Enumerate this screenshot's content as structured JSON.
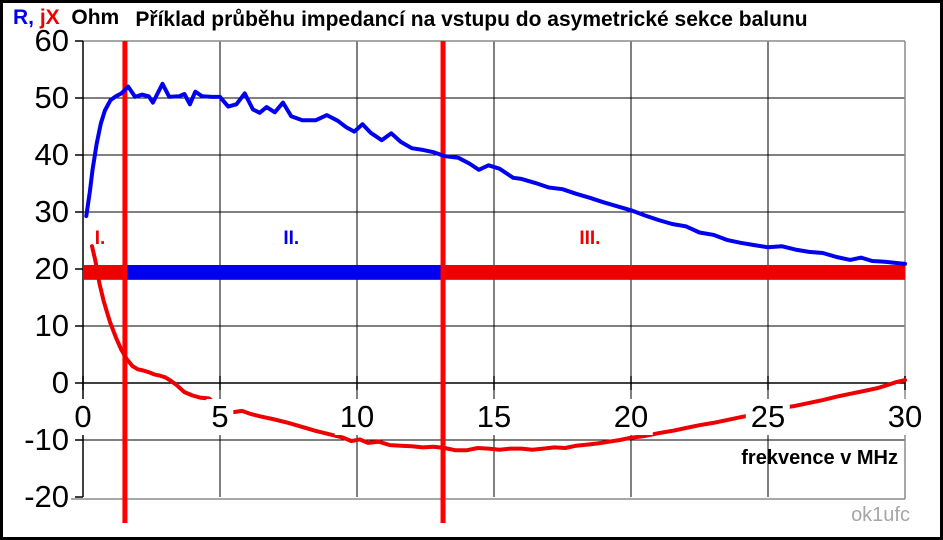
{
  "title": "Příklad průběhu impedancí na vstupu do asymetrické sekce balunu",
  "legend": {
    "r": "R,",
    "jx": " jX",
    "unit": "  Ohm"
  },
  "footer": {
    "x_axis_label": "frekvence v MHz",
    "watermark": "ok1ufc"
  },
  "colors": {
    "r_series": "#0000EE",
    "jx_series": "#EE0000",
    "marker_line": "#FF0000",
    "grid": "#000000",
    "plot_border": "#8C8C8C",
    "watermark": "#A6A6A6"
  },
  "chart_data": {
    "type": "line",
    "title": "Příklad průběhu impedancí na vstupu do asymetrické sekce balunu",
    "xlabel": "frekvence v MHz",
    "ylabel": "R, jX  Ohm",
    "xlim": [
      0,
      30
    ],
    "ylim": [
      -20,
      60
    ],
    "x_ticks": [
      0,
      5,
      10,
      15,
      20,
      25,
      30
    ],
    "y_ticks": [
      60,
      50,
      40,
      30,
      20,
      10,
      0,
      -10,
      -20
    ],
    "grid": "on",
    "legend_position": "top-left",
    "vlines": {
      "x": [
        1.53,
        13.14
      ],
      "color": "#FF0000",
      "extend_below": true
    },
    "band_y_range": [
      18.1,
      20.7
    ],
    "zones": [
      {
        "label": "I.",
        "color": "#EE0000",
        "band": [
          0,
          1.53
        ],
        "label_x": 0.62,
        "label_y": 25.3
      },
      {
        "label": "II.",
        "color": "#0000EE",
        "band": [
          1.53,
          13.14
        ],
        "label_x": 7.6,
        "label_y": 25.3
      },
      {
        "label": "III.",
        "color": "#EE0000",
        "band": [
          13.14,
          30
        ],
        "label_x": 18.5,
        "label_y": 25.3
      }
    ],
    "series": [
      {
        "name": "R",
        "color": "#0000EE",
        "points": [
          [
            0.12,
            29.3
          ],
          [
            0.25,
            33.5
          ],
          [
            0.35,
            37.5
          ],
          [
            0.5,
            42.0
          ],
          [
            0.65,
            45.5
          ],
          [
            0.8,
            47.8
          ],
          [
            1.0,
            49.6
          ],
          [
            1.2,
            50.3
          ],
          [
            1.4,
            50.8
          ],
          [
            1.65,
            52.0
          ],
          [
            1.9,
            50.2
          ],
          [
            2.15,
            50.6
          ],
          [
            2.4,
            50.3
          ],
          [
            2.55,
            49.2
          ],
          [
            2.9,
            52.5
          ],
          [
            3.15,
            50.2
          ],
          [
            3.5,
            50.3
          ],
          [
            3.7,
            50.7
          ],
          [
            3.9,
            48.9
          ],
          [
            4.1,
            51.1
          ],
          [
            4.35,
            50.3
          ],
          [
            4.7,
            50.2
          ],
          [
            5.0,
            50.2
          ],
          [
            5.3,
            48.5
          ],
          [
            5.6,
            48.9
          ],
          [
            5.9,
            50.8
          ],
          [
            6.2,
            48.0
          ],
          [
            6.45,
            47.4
          ],
          [
            6.7,
            48.4
          ],
          [
            7.0,
            47.5
          ],
          [
            7.3,
            49.2
          ],
          [
            7.6,
            46.8
          ],
          [
            8.0,
            46.1
          ],
          [
            8.5,
            46.1
          ],
          [
            8.9,
            47.0
          ],
          [
            9.3,
            46.0
          ],
          [
            9.6,
            44.9
          ],
          [
            9.9,
            44.1
          ],
          [
            10.2,
            45.4
          ],
          [
            10.5,
            43.9
          ],
          [
            10.9,
            42.6
          ],
          [
            11.25,
            43.8
          ],
          [
            11.6,
            42.3
          ],
          [
            12.0,
            41.2
          ],
          [
            12.4,
            40.9
          ],
          [
            12.8,
            40.5
          ],
          [
            13.2,
            39.8
          ],
          [
            13.7,
            39.5
          ],
          [
            14.1,
            38.5
          ],
          [
            14.45,
            37.4
          ],
          [
            14.8,
            38.2
          ],
          [
            15.2,
            37.6
          ],
          [
            15.7,
            36.0
          ],
          [
            16.0,
            35.8
          ],
          [
            16.5,
            35.1
          ],
          [
            17.0,
            34.3
          ],
          [
            17.5,
            34.0
          ],
          [
            18.0,
            33.2
          ],
          [
            18.5,
            32.5
          ],
          [
            19.0,
            31.7
          ],
          [
            19.5,
            31.0
          ],
          [
            20.0,
            30.3
          ],
          [
            20.5,
            29.4
          ],
          [
            21.0,
            28.6
          ],
          [
            21.5,
            27.9
          ],
          [
            22.0,
            27.5
          ],
          [
            22.5,
            26.4
          ],
          [
            23.0,
            26.0
          ],
          [
            23.5,
            25.1
          ],
          [
            24.0,
            24.6
          ],
          [
            24.5,
            24.2
          ],
          [
            25.0,
            23.8
          ],
          [
            25.5,
            24.0
          ],
          [
            26.0,
            23.4
          ],
          [
            26.5,
            23.0
          ],
          [
            27.0,
            22.8
          ],
          [
            27.5,
            22.1
          ],
          [
            28.0,
            21.6
          ],
          [
            28.4,
            22.0
          ],
          [
            28.8,
            21.4
          ],
          [
            29.2,
            21.3
          ],
          [
            29.6,
            21.1
          ],
          [
            30.0,
            20.9
          ]
        ]
      },
      {
        "name": "jX",
        "color": "#EE0000",
        "points": [
          [
            0.33,
            24.0
          ],
          [
            0.45,
            21.5
          ],
          [
            0.6,
            17.5
          ],
          [
            0.75,
            14.5
          ],
          [
            0.9,
            12.0
          ],
          [
            1.0,
            10.5
          ],
          [
            1.2,
            8.0
          ],
          [
            1.4,
            5.8
          ],
          [
            1.6,
            4.2
          ],
          [
            1.8,
            3.0
          ],
          [
            2.0,
            2.4
          ],
          [
            2.2,
            2.2
          ],
          [
            2.4,
            1.9
          ],
          [
            2.6,
            1.5
          ],
          [
            2.8,
            1.3
          ],
          [
            3.0,
            1.0
          ],
          [
            3.2,
            0.4
          ],
          [
            3.4,
            -0.3
          ],
          [
            3.7,
            -1.6
          ],
          [
            4.0,
            -2.2
          ],
          [
            4.3,
            -2.6
          ],
          [
            4.6,
            -2.7
          ],
          [
            4.8,
            -3.6
          ],
          [
            5.0,
            -4.2
          ],
          [
            5.2,
            -4.7
          ],
          [
            5.5,
            -5.1
          ],
          [
            5.8,
            -4.9
          ],
          [
            6.1,
            -5.4
          ],
          [
            6.5,
            -5.9
          ],
          [
            7.0,
            -6.4
          ],
          [
            7.5,
            -7.0
          ],
          [
            8.0,
            -7.7
          ],
          [
            8.5,
            -8.4
          ],
          [
            9.0,
            -9.0
          ],
          [
            9.5,
            -9.6
          ],
          [
            9.8,
            -10.2
          ],
          [
            10.1,
            -9.9
          ],
          [
            10.4,
            -10.5
          ],
          [
            10.8,
            -10.3
          ],
          [
            11.2,
            -10.9
          ],
          [
            11.6,
            -11.0
          ],
          [
            12.0,
            -11.1
          ],
          [
            12.4,
            -11.3
          ],
          [
            12.8,
            -11.2
          ],
          [
            13.2,
            -11.4
          ],
          [
            13.6,
            -11.8
          ],
          [
            14.0,
            -11.8
          ],
          [
            14.4,
            -11.4
          ],
          [
            14.8,
            -11.5
          ],
          [
            15.2,
            -11.7
          ],
          [
            15.6,
            -11.5
          ],
          [
            16.0,
            -11.5
          ],
          [
            16.4,
            -11.7
          ],
          [
            16.8,
            -11.5
          ],
          [
            17.2,
            -11.3
          ],
          [
            17.6,
            -11.4
          ],
          [
            18.0,
            -11.0
          ],
          [
            18.4,
            -10.8
          ],
          [
            18.8,
            -10.6
          ],
          [
            19.2,
            -10.3
          ],
          [
            19.6,
            -10.0
          ],
          [
            20.0,
            -9.6
          ],
          [
            20.5,
            -9.3
          ],
          [
            21.0,
            -8.8
          ],
          [
            21.5,
            -8.4
          ],
          [
            22.0,
            -7.9
          ],
          [
            22.5,
            -7.4
          ],
          [
            23.0,
            -7.0
          ],
          [
            23.5,
            -6.5
          ],
          [
            24.0,
            -6.0
          ],
          [
            24.5,
            -5.5
          ],
          [
            25.0,
            -4.9
          ],
          [
            25.5,
            -4.4
          ],
          [
            26.0,
            -4.0
          ],
          [
            26.5,
            -3.5
          ],
          [
            27.0,
            -3.0
          ],
          [
            27.5,
            -2.4
          ],
          [
            28.0,
            -1.9
          ],
          [
            28.5,
            -1.4
          ],
          [
            29.0,
            -0.9
          ],
          [
            29.4,
            -0.3
          ],
          [
            29.7,
            0.2
          ],
          [
            30.0,
            0.5
          ]
        ]
      }
    ]
  }
}
